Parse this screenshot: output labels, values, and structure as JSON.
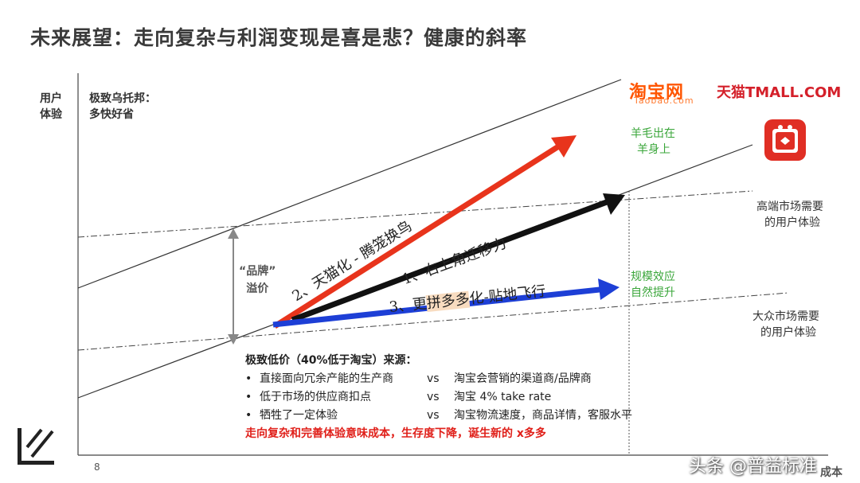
{
  "title": "未来展望：走向复杂与利润变现是喜是悲？健康的斜率",
  "axis": {
    "y_label_line1": "用户",
    "y_label_line2": "体验",
    "x_label": "成本"
  },
  "utopia": {
    "line1": "极致乌托邦：",
    "line2": "多快好省"
  },
  "logos": {
    "taobao": "淘宝网",
    "taobao_sub": "Taobao.com",
    "tmall": "天猫TMALL.COM",
    "pdd_icon": "pinduoduo-logo"
  },
  "wool": {
    "line1": "羊毛出在",
    "line2": "羊身上"
  },
  "high_end": {
    "line1": "高端市场需要",
    "line2": "的用户体验"
  },
  "mass": {
    "line1": "大众市场需要",
    "line2": "的用户体验"
  },
  "scale": {
    "line1": "规模效应",
    "line2": "自然提升"
  },
  "premium": {
    "line1": "“品牌”",
    "line2": "溢价"
  },
  "arrows": {
    "red": "2、天猫化 - 腾笼换鸟",
    "black": "1、右上角迁移力",
    "blue_prefix": "3、更",
    "blue_highlight": "拼多多",
    "blue_suffix": "化-贴地飞行"
  },
  "notes": {
    "title": "极致低价（40%低于淘宝）来源：",
    "rows": [
      {
        "left": "直接面向冗余产能的生产商",
        "vs": "vs",
        "right": "淘宝会营销的渠道商/品牌商"
      },
      {
        "left": "低于市场的供应商扣点",
        "vs": "vs",
        "right": "淘宝 4% take rate"
      },
      {
        "left": "牺牲了一定体验",
        "vs": "vs",
        "right": "淘宝物流速度，商品详情，客服水平"
      }
    ],
    "conclusion": "走向复杂和完善体验意味成本，生存度下降，诞生新的 x多多"
  },
  "page_number": "8",
  "watermark": "头条 @普益标准",
  "colors": {
    "red_arrow": "#e8341c",
    "black_arrow": "#111111",
    "blue_arrow": "#1d3fd6",
    "green_text": "#3aa63a",
    "red_text": "#e0201a",
    "highlight": "#f8dcc0"
  }
}
